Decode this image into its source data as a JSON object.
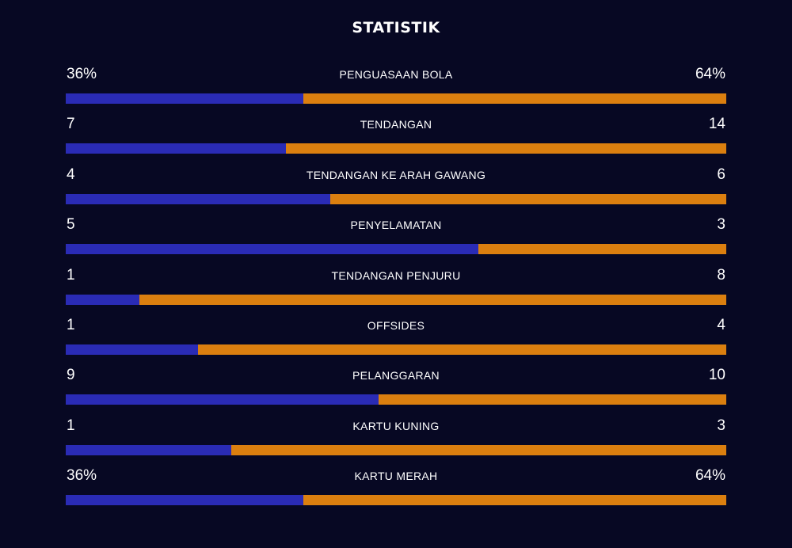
{
  "title": "STATISTIK",
  "colors": {
    "background": "#070823",
    "home": "#2a2bb5",
    "away": "#db7f0f"
  },
  "stats": [
    {
      "label": "PENGUASAAN BOLA",
      "home": "36%",
      "away": "64%",
      "home_share": 0.36
    },
    {
      "label": "TENDANGAN",
      "home": "7",
      "away": "14",
      "home_share": 0.333
    },
    {
      "label": "TENDANGAN KE ARAH GAWANG",
      "home": "4",
      "away": "6",
      "home_share": 0.4
    },
    {
      "label": "PENYELAMATAN",
      "home": "5",
      "away": "3",
      "home_share": 0.625
    },
    {
      "label": "TENDANGAN PENJURU",
      "home": "1",
      "away": "8",
      "home_share": 0.111
    },
    {
      "label": "OFFSIDES",
      "home": "1",
      "away": "4",
      "home_share": 0.2
    },
    {
      "label": "PELANGGARAN",
      "home": "9",
      "away": "10",
      "home_share": 0.474
    },
    {
      "label": "KARTU KUNING",
      "home": "1",
      "away": "3",
      "home_share": 0.25
    },
    {
      "label": "KARTU MERAH",
      "home": "36%",
      "away": "64%",
      "home_share": 0.36
    }
  ]
}
